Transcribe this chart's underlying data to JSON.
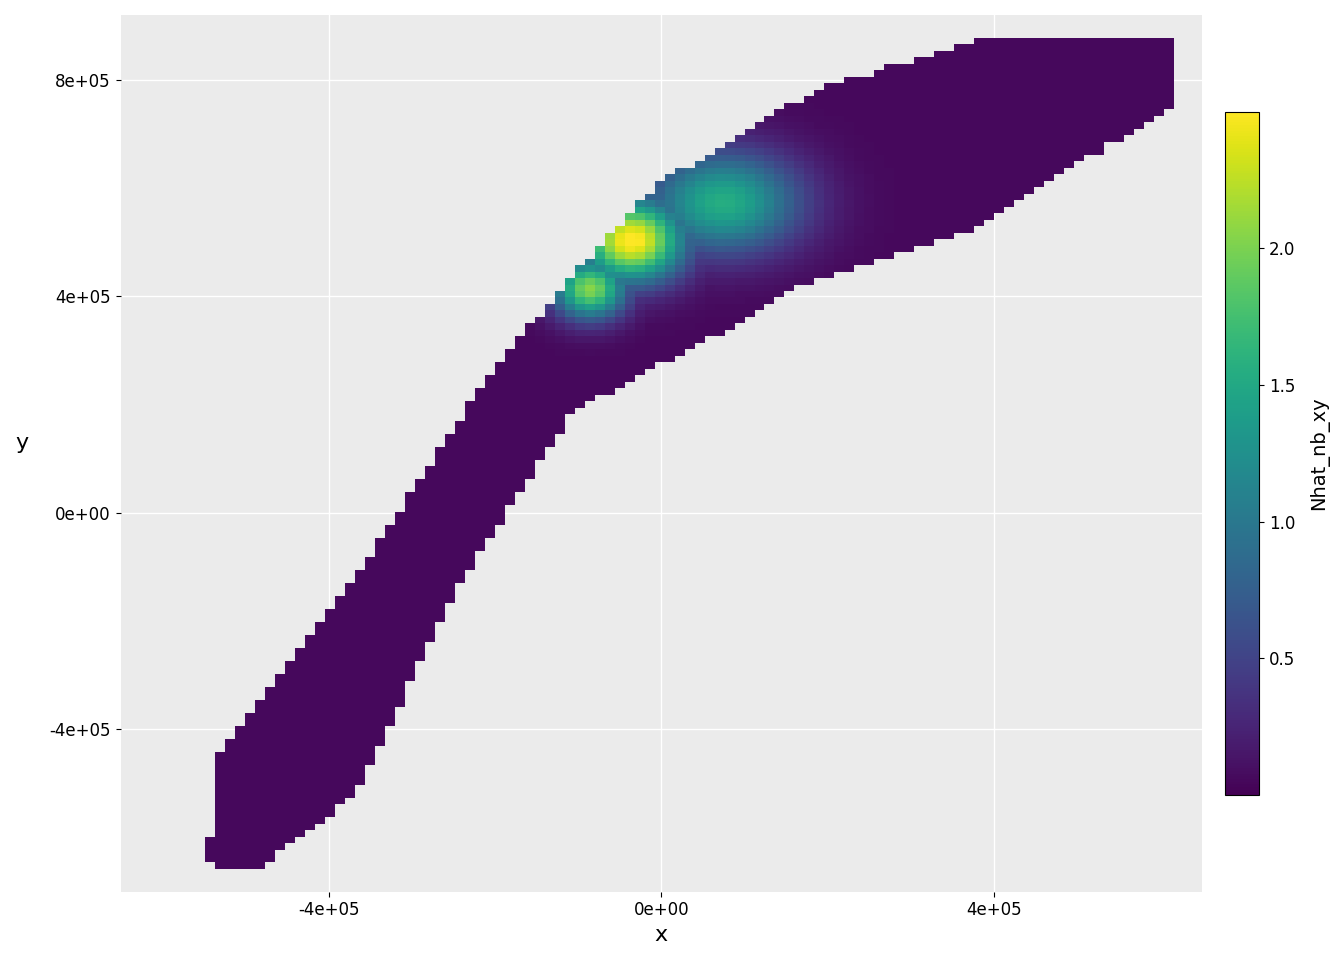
{
  "title": "",
  "xlabel": "x",
  "ylabel": "y",
  "colorbar_label": "Nhat_nb_xy",
  "colorbar_ticks": [
    0.5,
    1.0,
    1.5,
    2.0
  ],
  "vmin": 0.0,
  "vmax": 2.5,
  "xlim": [
    -650000,
    650000
  ],
  "ylim": [
    -700000,
    920000
  ],
  "xticks": [
    -400000,
    0,
    400000
  ],
  "yticks": [
    -400000,
    0,
    400000,
    800000
  ],
  "background_color": "#EBEBEB",
  "grid_color": "#FFFFFF",
  "cmap": "viridis",
  "cell_size": 12000
}
